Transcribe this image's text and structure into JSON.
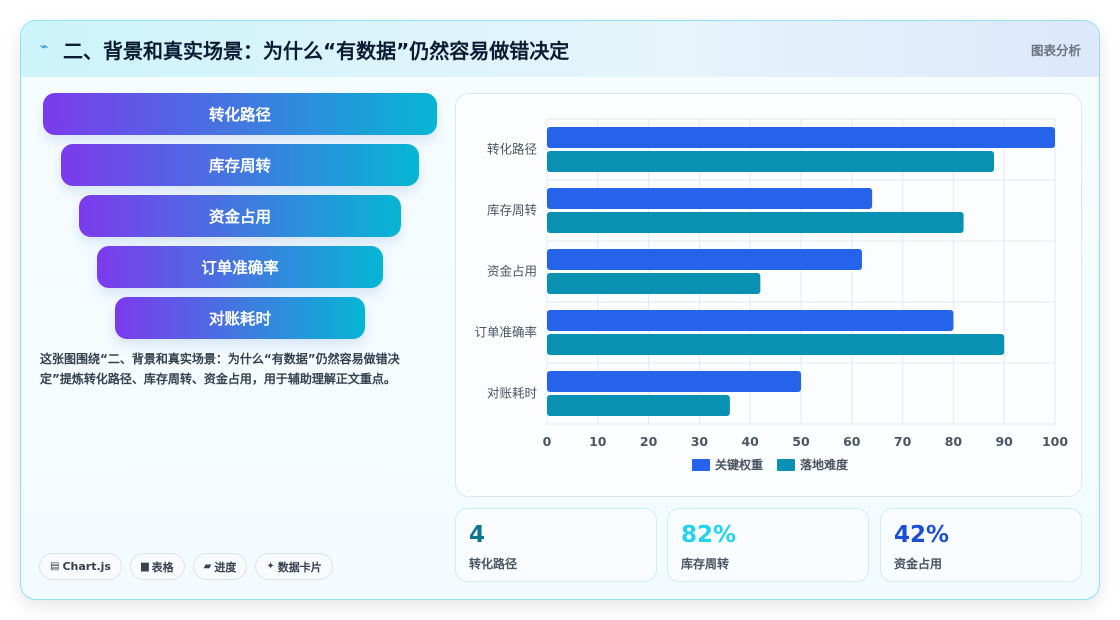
{
  "header": {
    "title": "二、背景和真实场景：为什么“有数据”仍然容易做错决定",
    "tag": "图表分析",
    "icon": "bolt-icon"
  },
  "funnel": {
    "items": [
      "转化路径",
      "库存周转",
      "资金占用",
      "订单准确率",
      "对账耗时"
    ]
  },
  "description": "这张图围绕“二、背景和真实场景：为什么“有数据”仍然容易做错决定”提炼转化路径、库存周转、资金占用，用于辅助理解正文重点。",
  "chips": [
    {
      "icon": "chart-icon",
      "glyph": "▤",
      "label": "Chart.js"
    },
    {
      "icon": "table-icon",
      "glyph": "▆",
      "label": "表格"
    },
    {
      "icon": "progress-icon",
      "glyph": "▰",
      "label": "进度"
    },
    {
      "icon": "sparkle-icon",
      "glyph": "✦",
      "label": "数据卡片"
    }
  ],
  "stats": [
    {
      "value": "4",
      "label": "转化路径",
      "color": "#0e7490"
    },
    {
      "value": "82%",
      "label": "库存周转",
      "color": "#22d3ee"
    },
    {
      "value": "42%",
      "label": "资金占用",
      "color": "#1d4ed8"
    }
  ],
  "colors": {
    "accent_blue": "#2563eb",
    "accent_teal": "#0891b2",
    "purple": "#7c3aed",
    "cyan": "#06b6d4"
  },
  "chart_data": {
    "type": "bar",
    "orientation": "horizontal",
    "categories": [
      "转化路径",
      "库存周转",
      "资金占用",
      "订单准确率",
      "对账耗时"
    ],
    "series": [
      {
        "name": "关键权重",
        "color": "#2563eb",
        "values": [
          100,
          64,
          62,
          80,
          50
        ]
      },
      {
        "name": "落地难度",
        "color": "#0891b2",
        "values": [
          88,
          82,
          42,
          90,
          36
        ]
      }
    ],
    "xlim": [
      0,
      100
    ],
    "xticks": [
      0,
      10,
      20,
      30,
      40,
      50,
      60,
      70,
      80,
      90,
      100
    ],
    "grid": true,
    "legend": "bottom"
  }
}
